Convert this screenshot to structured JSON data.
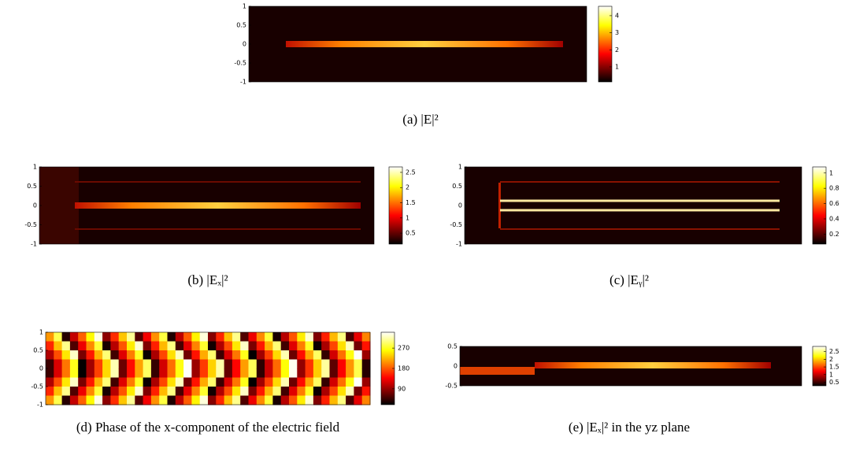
{
  "panels": [
    {
      "caption": "(a) |E|²",
      "ylim": [
        -1,
        1
      ],
      "yticks": [
        1,
        0.5,
        0,
        -0.5,
        -1
      ],
      "colorbar": {
        "lim": [
          0.12,
          4.55
        ],
        "ticks": [
          1,
          2,
          3,
          4
        ]
      }
    },
    {
      "caption": "(b) |Eₓ|²",
      "ylim": [
        -1,
        1
      ],
      "yticks": [
        1,
        0.5,
        0,
        -0.5,
        -1
      ],
      "colorbar": {
        "lim": [
          0.14,
          2.68
        ],
        "ticks": [
          0.5,
          1,
          1.5,
          2,
          2.5
        ]
      }
    },
    {
      "caption": "(c) |Eᵧ|²",
      "ylim": [
        -1,
        1
      ],
      "yticks": [
        1,
        0.5,
        0,
        -0.5,
        -1
      ],
      "colorbar": {
        "lim": [
          0.07,
          1.08
        ],
        "ticks": [
          0.2,
          0.4,
          0.6,
          0.8,
          1
        ]
      }
    },
    {
      "caption": "(d) Phase of the x-component of the electric field",
      "ylim": [
        -1,
        1
      ],
      "yticks": [
        1,
        0.5,
        0,
        -0.5,
        -1
      ],
      "colorbar": {
        "lim": [
          20,
          340
        ],
        "ticks": [
          90,
          180,
          270
        ]
      }
    },
    {
      "caption": "(e) |Eₓ|² in the yz plane",
      "ylim": [
        -0.5,
        0.5
      ],
      "yticks": [
        0.5,
        0,
        -0.5
      ],
      "colorbar": {
        "lim": [
          0.27,
          2.84
        ],
        "ticks": [
          0.5,
          1,
          1.5,
          2,
          2.5
        ]
      }
    }
  ]
}
